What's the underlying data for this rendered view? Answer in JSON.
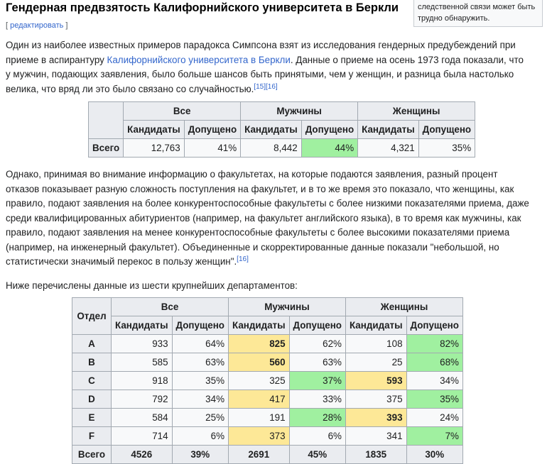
{
  "title": "Гендерная предвзятость Калифорнийского университета в Беркли",
  "edit": {
    "open": "[ ",
    "label": "редактировать",
    "close": " ]"
  },
  "sidebox": {
    "line1": "следственной связи может быть",
    "line2": "трудно обнаружить."
  },
  "p1": {
    "t1": "Один из наиболее известных примеров парадокса Симпсона взят из исследования гендерных предубеждений при приеме в аспирантуру ",
    "link": "Калифорнийского университета в Беркли",
    "t2": ". Данные о приеме на осень 1973 года показали, что у мужчин, подающих заявления, было больше шансов быть принятыми, чем у женщин, и разница была настолько велика, что вряд ли это было связано со случайностью.",
    "ref1": "[15]",
    "ref2": "[16]"
  },
  "table1": {
    "groups": [
      "Все",
      "Мужчины",
      "Женщины"
    ],
    "sub": [
      "Кандидаты",
      "Допущено",
      "Кандидаты",
      "Допущено",
      "Кандидаты",
      "Допущено"
    ],
    "row_label": "Всего",
    "cells": [
      "12,763",
      "41%",
      "8,442",
      "44%",
      "4,321",
      "35%"
    ]
  },
  "p2": {
    "text": "Однако, принимая во внимание информацию о факультетах, на которые подаются заявления, разный процент отказов показывает разную сложность поступления на факультет, и в то же время это показало, что женщины, как правило, подают заявления на более конкурентоспособные факультеты с более низкими показателями приема, даже среди квалифицированных абитуриентов (например, на факультет английского языка), в то время как мужчины, как правило, подают заявления на менее конкурентоспособные факультеты с более высокими показателями приема (например, на инженерный факультет). Объединенные и скорректированные данные показали \"небольшой, но статистически значимый перекос в пользу женщин\".",
    "ref": "[16]"
  },
  "p3": "Ниже перечислены данные из шести крупнейших департаментов:",
  "table2": {
    "dept_header": "Отдел",
    "groups": [
      "Все",
      "Мужчины",
      "Женщины"
    ],
    "sub": [
      "Кандидаты",
      "Допущено",
      "Кандидаты",
      "Допущено",
      "Кандидаты",
      "Допущено"
    ],
    "rows": [
      {
        "dept": "A",
        "all_apps": "933",
        "all_adm": "64%",
        "m_apps": "825",
        "m_adm": "62%",
        "w_apps": "108",
        "w_adm": "82%"
      },
      {
        "dept": "B",
        "all_apps": "585",
        "all_adm": "63%",
        "m_apps": "560",
        "m_adm": "63%",
        "w_apps": "25",
        "w_adm": "68%"
      },
      {
        "dept": "C",
        "all_apps": "918",
        "all_adm": "35%",
        "m_apps": "325",
        "m_adm": "37%",
        "w_apps": "593",
        "w_adm": "34%"
      },
      {
        "dept": "D",
        "all_apps": "792",
        "all_adm": "34%",
        "m_apps": "417",
        "m_adm": "33%",
        "w_apps": "375",
        "w_adm": "35%"
      },
      {
        "dept": "E",
        "all_apps": "584",
        "all_adm": "25%",
        "m_apps": "191",
        "m_adm": "28%",
        "w_apps": "393",
        "w_adm": "24%"
      },
      {
        "dept": "F",
        "all_apps": "714",
        "all_adm": "6%",
        "m_apps": "373",
        "m_adm": "6%",
        "w_apps": "341",
        "w_adm": "7%"
      }
    ],
    "total": {
      "dept": "Всего",
      "all_apps": "4526",
      "all_adm": "39%",
      "m_apps": "2691",
      "m_adm": "45%",
      "w_apps": "1835",
      "w_adm": "30%"
    }
  },
  "colors": {
    "higher_admit": "#a0f0a0",
    "more_applicants": "#fde897",
    "link": "#3366cc"
  }
}
